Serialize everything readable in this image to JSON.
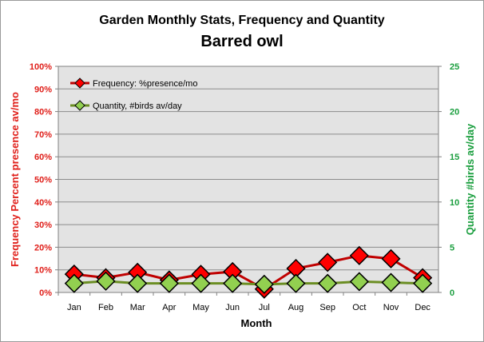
{
  "chart_data": {
    "type": "line",
    "title": "Garden Monthly Stats, Frequency and Quantity",
    "subtitle": "Barred owl",
    "xlabel": "Month",
    "ylabel_left": "Frequency  Percent presence av/mo",
    "ylabel_right": "Quantity  #birds av/day",
    "categories": [
      "Jan",
      "Feb",
      "Mar",
      "Apr",
      "May",
      "Jun",
      "Jul",
      "Aug",
      "Sep",
      "Oct",
      "Nov",
      "Dec"
    ],
    "y_left": {
      "min": 0,
      "max": 100,
      "ticks": [
        "0%",
        "10%",
        "20%",
        "30%",
        "40%",
        "50%",
        "60%",
        "70%",
        "80%",
        "90%",
        "100%"
      ]
    },
    "y_right": {
      "min": 0,
      "max": 25,
      "ticks": [
        "0",
        "5",
        "10",
        "15",
        "20",
        "25"
      ]
    },
    "grid": true,
    "legend_placement": "top-left",
    "series": [
      {
        "name": "Frequency: %presence/mo",
        "axis": "left",
        "color": "#c00000",
        "marker_color": "#ff0000",
        "values": [
          8.1,
          6.5,
          8.9,
          5.5,
          8.0,
          9.2,
          1.5,
          10.6,
          13.3,
          16.3,
          14.9,
          6.5
        ]
      },
      {
        "name": "Quantity, #birds av/day",
        "axis": "right",
        "color": "#6b8e23",
        "marker_color": "#92d050",
        "values": [
          1.0,
          1.25,
          1.0,
          1.0,
          1.0,
          1.0,
          0.9,
          1.0,
          1.0,
          1.2,
          1.1,
          1.0
        ]
      }
    ]
  }
}
